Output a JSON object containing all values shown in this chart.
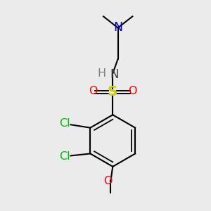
{
  "background_color": "#ebebeb",
  "bond_color": "#000000",
  "bond_width": 1.5,
  "figsize": [
    3.0,
    3.0
  ],
  "dpi": 100,
  "N_color": "#0000cc",
  "S_color": "#cccc00",
  "O_color": "#ff0000",
  "Cl_color": "#00bb00",
  "NH_color": "#808080",
  "N_label": "N",
  "NH_label": "H",
  "N_label2": "N",
  "S_label": "S",
  "O_label": "O",
  "Cl_label": "Cl"
}
